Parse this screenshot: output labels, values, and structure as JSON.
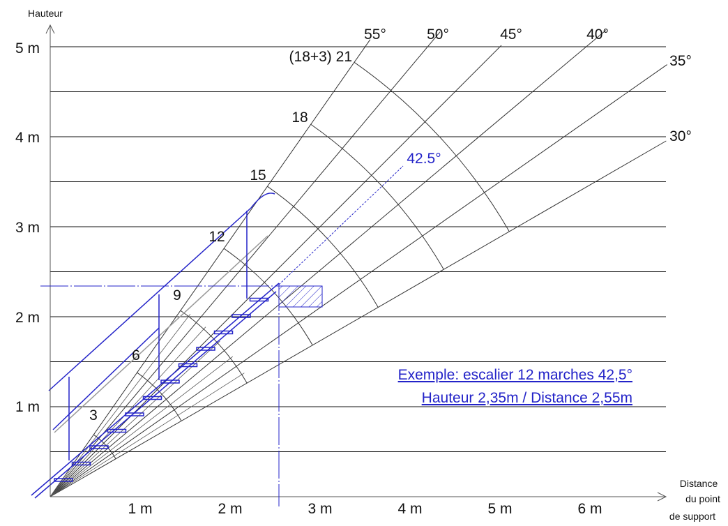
{
  "axes": {
    "y_title": "Hauteur",
    "x_title": [
      "Distance",
      "du point",
      "de support"
    ],
    "y_labels": [
      "1 m",
      "2 m",
      "3 m",
      "4 m",
      "5 m"
    ],
    "x_labels": [
      "1 m",
      "2 m",
      "3 m",
      "4 m",
      "5 m",
      "6 m"
    ]
  },
  "angles": [
    "55°",
    "50°",
    "45°",
    "40°",
    "35°",
    "30°"
  ],
  "highlight_angle": "42.5°",
  "steps": [
    "3",
    "6",
    "9",
    "12",
    "15",
    "18",
    "(18+3) 21"
  ],
  "example": [
    "Exemple: escalier 12 marches 42,5°",
    "Hauteur 2,35m / Distance 2,55m"
  ]
}
